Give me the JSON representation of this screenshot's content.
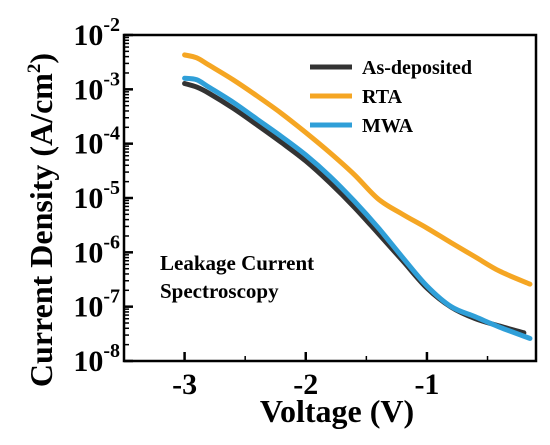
{
  "chart_data": {
    "type": "line",
    "xlabel": "Voltage (V)",
    "ylabel_main": "Current Density (A/cm",
    "ylabel_sup": "2",
    "ylabel_end": ")",
    "yscale": "log",
    "xlim": [
      -3.5,
      -0.1
    ],
    "ylim": [
      1e-08,
      0.01
    ],
    "x_ticks": [
      {
        "value": -3,
        "label": "-3"
      },
      {
        "value": -2,
        "label": "-2"
      },
      {
        "value": -1,
        "label": "-1"
      }
    ],
    "y_ticks": [
      {
        "value": 1e-08,
        "base": "10",
        "exp": "-8"
      },
      {
        "value": 1e-07,
        "base": "10",
        "exp": "-7"
      },
      {
        "value": 1e-06,
        "base": "10",
        "exp": "-6"
      },
      {
        "value": 1e-05,
        "base": "10",
        "exp": "-5"
      },
      {
        "value": 0.0001,
        "base": "10",
        "exp": "-4"
      },
      {
        "value": 0.001,
        "base": "10",
        "exp": "-3"
      },
      {
        "value": 0.01,
        "base": "10",
        "exp": "-2"
      }
    ],
    "legend_position": "top-right",
    "annotation": [
      "Leakage Current",
      "Spectroscopy"
    ],
    "series": [
      {
        "name": "As-deposited",
        "color": "#333333",
        "x": [
          -3.0,
          -2.9,
          -2.8,
          -2.6,
          -2.4,
          -2.2,
          -2.0,
          -1.8,
          -1.6,
          -1.4,
          -1.2,
          -1.0,
          -0.8,
          -0.6,
          -0.4,
          -0.2
        ],
        "y": [
          0.00128,
          0.0011,
          0.00085,
          0.00045,
          0.00022,
          0.000105,
          4.8e-05,
          1.9e-05,
          6.8e-06,
          2.2e-06,
          7e-07,
          2.2e-07,
          9.8e-08,
          6e-08,
          4.4e-08,
          3.3e-08
        ]
      },
      {
        "name": "RTA",
        "color": "#f5a623",
        "x": [
          -3.0,
          -2.9,
          -2.8,
          -2.6,
          -2.4,
          -2.2,
          -2.0,
          -1.8,
          -1.6,
          -1.4,
          -1.2,
          -1.0,
          -0.8,
          -0.6,
          -0.4,
          -0.15
        ],
        "y": [
          0.0043,
          0.0038,
          0.0028,
          0.0015,
          0.00075,
          0.00036,
          0.00016,
          6.8e-05,
          2.7e-05,
          9.5e-06,
          5e-06,
          2.8e-06,
          1.5e-06,
          8.2e-07,
          4.5e-07,
          2.6e-07
        ]
      },
      {
        "name": "MWA",
        "color": "#2f9fd8",
        "x": [
          -3.0,
          -2.9,
          -2.8,
          -2.6,
          -2.4,
          -2.2,
          -2.0,
          -1.8,
          -1.6,
          -1.4,
          -1.2,
          -1.0,
          -0.8,
          -0.6,
          -0.4,
          -0.15
        ],
        "y": [
          0.0016,
          0.0015,
          0.0011,
          0.00058,
          0.00028,
          0.000135,
          6.2e-05,
          2.5e-05,
          8.8e-06,
          2.8e-06,
          8e-07,
          2.4e-07,
          1e-07,
          6.5e-08,
          4.2e-08,
          2.6e-08
        ]
      }
    ]
  }
}
